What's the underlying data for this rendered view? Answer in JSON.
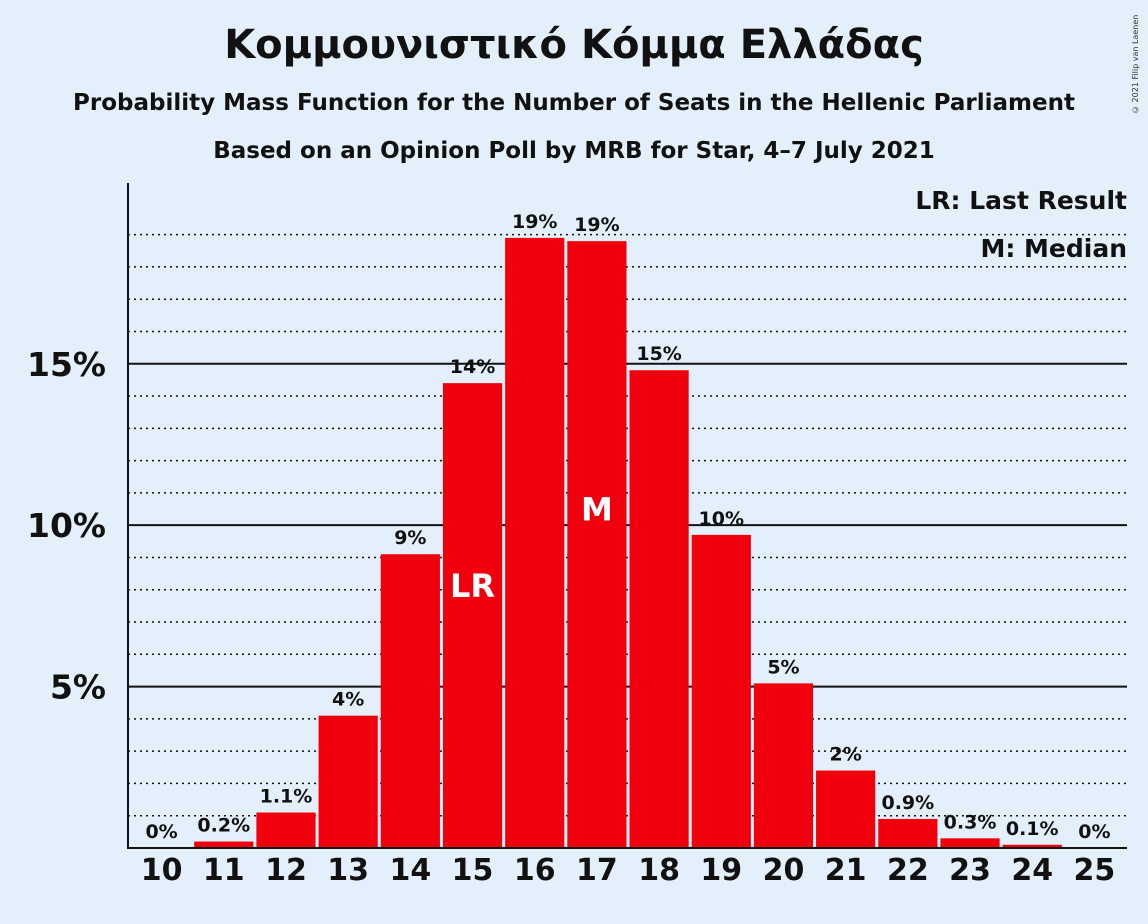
{
  "title": "Κομμουνιστικό Κόμμα Ελλάδας",
  "subtitle": "Probability Mass Function for the Number of Seats in the Hellenic Parliament",
  "subtitle2": "Based on an Opinion Poll by MRB for Star, 4–7 July 2021",
  "copyright": "© 2021 Filip van Laenen",
  "legend": {
    "lr": "LR: Last Result",
    "m": "M: Median"
  },
  "colors": {
    "bar": "#f0000c",
    "background": "#e3f0fc"
  },
  "chart_data": {
    "type": "bar",
    "categories": [
      "10",
      "11",
      "12",
      "13",
      "14",
      "15",
      "16",
      "17",
      "18",
      "19",
      "20",
      "21",
      "22",
      "23",
      "24",
      "25"
    ],
    "values": [
      0,
      0.2,
      1.1,
      4.1,
      9.1,
      14.4,
      18.9,
      18.8,
      14.8,
      9.7,
      5.1,
      2.4,
      0.9,
      0.3,
      0.1,
      0
    ],
    "data_labels": [
      "0%",
      "0.2%",
      "1.1%",
      "4%",
      "9%",
      "14%",
      "19%",
      "19%",
      "15%",
      "10%",
      "5%",
      "2%",
      "0.9%",
      "0.3%",
      "0.1%",
      "0%"
    ],
    "ylim": [
      0,
      20.6
    ],
    "yticks": [
      5,
      10,
      15
    ],
    "ytick_labels": [
      "5%",
      "10%",
      "15%"
    ],
    "minor_grid_step": 1,
    "bar_markers": {
      "15": "LR",
      "17": "M"
    },
    "legend_position": "top-right"
  }
}
